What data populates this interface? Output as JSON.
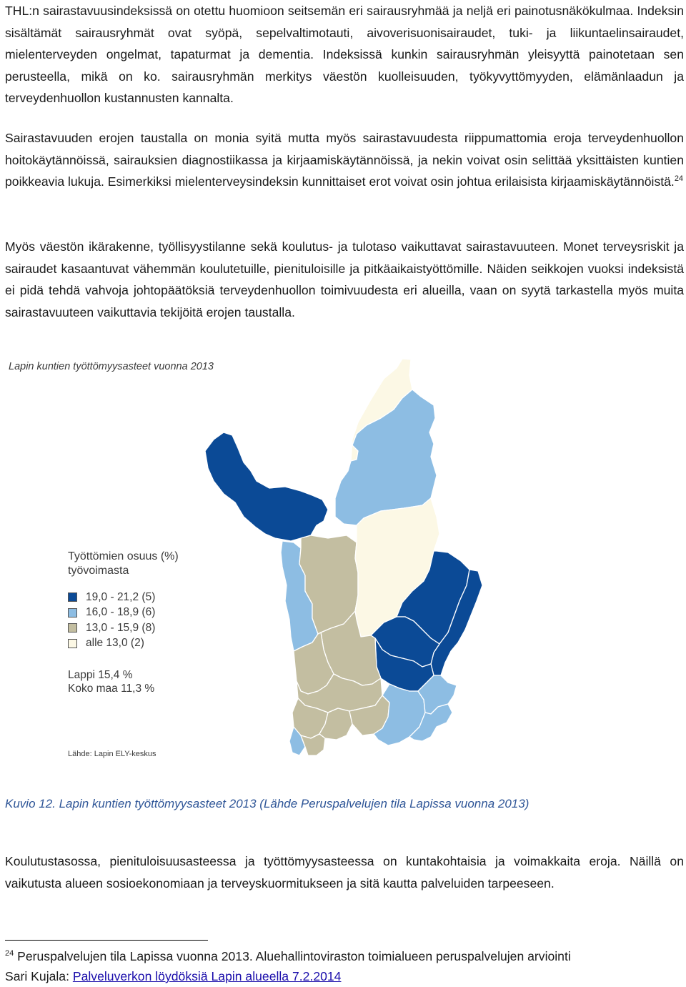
{
  "paragraph1": "THL:n sairastavuusindeksissä on otettu huomioon seitsemän eri sairausryhmää ja neljä eri painotusnäkökulmaa. Indeksin sisältämät sairausryhmät ovat syöpä, sepelvaltimotauti, aivoverisuonisairaudet, tuki- ja liikuntaelinsairaudet, mielenterveyden ongelmat, tapaturmat ja dementia. Indeksissä kunkin sairausryhmän yleisyyttä painotetaan sen perusteella, mikä on ko. sairausryhmän merkitys väestön kuolleisuuden, työkyvyttömyyden, elämänlaadun ja terveydenhuollon kustannusten kannalta.",
  "paragraph2": "Sairastavuuden erojen taustalla on monia syitä mutta myös sairastavuudesta riippumattomia eroja terveydenhuollon hoitokäytännöissä, sairauksien diagnostiikassa ja kirjaamiskäytännöissä, ja nekin voivat osin selittää yksittäisten kuntien poikkeavia lukuja. Esimerkiksi mielenterveysindeksin kunnittaiset erot voivat osin johtua erilaisista kirjaamiskäytännöistä.",
  "paragraph2_sup": "24",
  "paragraph3": "Myös väestön ikärakenne, työllisyystilanne sekä koulutus- ja tulotaso vaikuttavat sairastavuuteen. Monet terveysriskit ja sairaudet kasaantuvat vähemmän koulutetuille, pienituloisille ja pitkäaikaistyöttömille. Näiden seikkojen vuoksi indeksistä ei pidä tehdä vahvoja johtopäätöksiä terveydenhuollon toimivuudesta eri alueilla, vaan on syytä tarkastella myös muita sairastavuuteen vaikuttavia tekijöitä erojen taustalla.",
  "figure": {
    "title": "Lapin kuntien työttömyysasteet vuonna 2013",
    "legend_title_1": "Työttömien osuus (%)",
    "legend_title_2": "työvoimasta",
    "legend": [
      {
        "label": "19,0 - 21,2  (5)",
        "color": "#0b4a96"
      },
      {
        "label": "16,0 - 18,9  (6)",
        "color": "#8dbde3"
      },
      {
        "label": "13,0 - 15,9  (8)",
        "color": "#c3bea1"
      },
      {
        "label": "alle 13,0    (2)",
        "color": "#fcf8e5"
      }
    ],
    "stat_lappi": "Lappi 15,4 %",
    "stat_koko_maa": "Koko maa 11,3 %",
    "source": "Lähde: Lapin ELY-keskus"
  },
  "caption": "Kuvio 12. Lapin kuntien työttömyysasteet 2013 (Lähde Peruspalvelujen tila Lapissa vuonna 2013)",
  "paragraph4": "Koulutustasossa, pienituloisuusasteessa ja työttömyysasteessa on kuntakohtaisia ja voimakkaita eroja. Näillä on vaikutusta alueen sosioekonomiaan ja terveyskuormitukseen ja sitä kautta palveluiden tarpeeseen.",
  "footnote_number": "24",
  "footnote_text": "Peruspalvelujen tila Lapissa vuonna 2013. Aluehallintoviraston toimialueen peruspalvelujen arviointi",
  "footnote2_prefix": "Sari Kujala: ",
  "footnote2_link": "Palveluverkon löydöksiä Lapin alueella 7.2.2014"
}
